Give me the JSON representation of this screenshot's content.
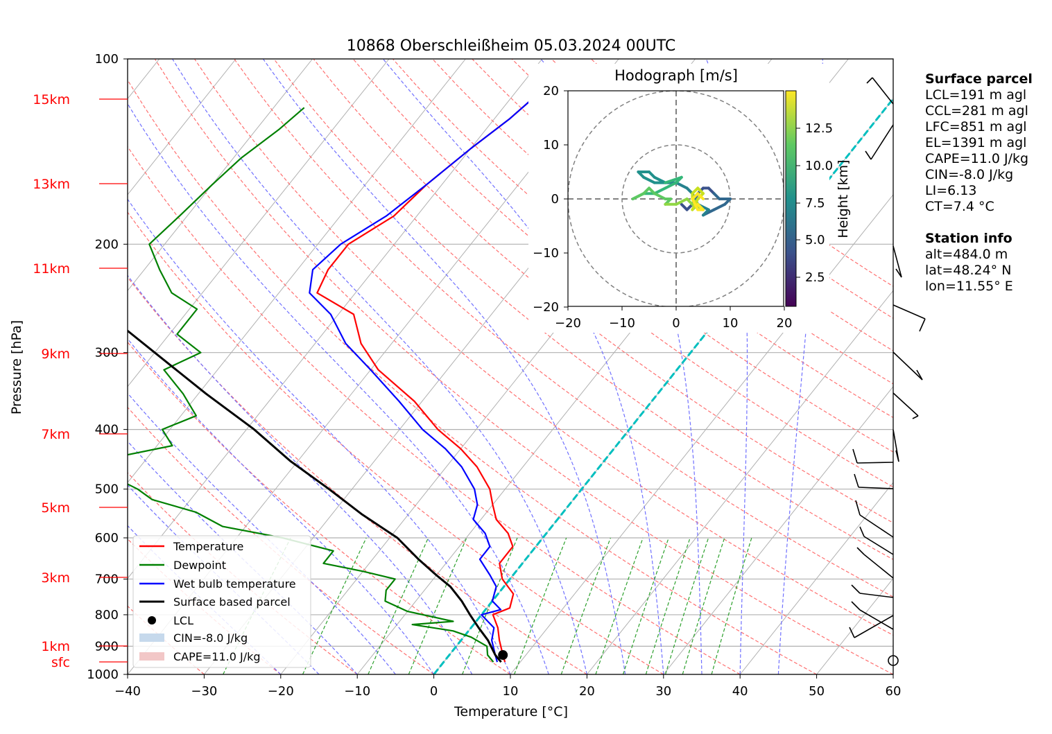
{
  "title": "10868 Oberschleißheim 05.03.2024 00UTC",
  "xlabel": "Temperature [°C]",
  "ylabel": "Pressure [hPa]",
  "x_ticks": [
    "−40",
    "−30",
    "−20",
    "−10",
    "0",
    "10",
    "20",
    "30",
    "40",
    "50",
    "60"
  ],
  "p_ticks": [
    "100",
    "200",
    "300",
    "400",
    "500",
    "600",
    "700",
    "800",
    "900",
    "1000"
  ],
  "height_labels": [
    "15km",
    "13km",
    "11km",
    "9km",
    "7km",
    "5km",
    "3km",
    "1km",
    "sfc"
  ],
  "legend": {
    "temperature": "Temperature",
    "dewpoint": "Dewpoint",
    "wetbulb": "Wet bulb temperature",
    "parcel": "Surface based parcel",
    "lcl": "LCL",
    "cin": "CIN=-8.0 J/kg",
    "cape": "CAPE=11.0 J/kg"
  },
  "hodograph": {
    "title": "Hodograph [m/s]",
    "ticks": [
      "−20",
      "−10",
      "0",
      "10",
      "20"
    ],
    "colorbar_label": "Height [km]",
    "colorbar_ticks": [
      "2.5",
      "5.0",
      "7.5",
      "10.0",
      "12.5"
    ]
  },
  "surface_parcel": {
    "heading": "Surface parcel",
    "lines": [
      "LCL=191 m agl",
      "CCL=281 m agl",
      "LFC=851 m agl",
      "EL=1391 m agl",
      "CAPE=11.0 J/kg",
      "CIN=-8.0 J/kg",
      "LI=6.13",
      "CT=7.4 °C"
    ]
  },
  "station_info": {
    "heading": "Station info",
    "lines": [
      "alt=484.0 m",
      "lat=48.24° N",
      "lon=11.55° E"
    ]
  },
  "colors": {
    "temperature": "#ff0000",
    "dewpoint": "#008000",
    "wetbulb": "#0000ff",
    "parcel": "#000000",
    "zero_isotherm": "#00bfbf",
    "dry_adiabat": "#ff7070",
    "moist_adiabat": "#7070ff",
    "mixing_ratio": "#2ca02c"
  },
  "chart_data": [
    {
      "type": "line",
      "title": "10868 Oberschleißheim 05.03.2024 00UTC",
      "xlabel": "Temperature [°C]",
      "ylabel": "Pressure [hPa]",
      "xlim": [
        -40,
        60
      ],
      "ylim": [
        1000,
        100
      ],
      "y_scale": "log",
      "skew": "skew-T log-p",
      "grid": true,
      "legend_position": "lower-left",
      "series": [
        {
          "name": "Temperature",
          "points": [
            [
              8,
              955
            ],
            [
              7,
              930
            ],
            [
              5,
              880
            ],
            [
              3.5,
              840
            ],
            [
              1.5,
              800
            ],
            [
              3,
              780
            ],
            [
              2,
              740
            ],
            [
              -1,
              700
            ],
            [
              -3,
              660
            ],
            [
              -3,
              620
            ],
            [
              -5,
              590
            ],
            [
              -8,
              560
            ],
            [
              -10,
              530
            ],
            [
              -12,
              500
            ],
            [
              -16,
              460
            ],
            [
              -20,
              430
            ],
            [
              -25,
              400
            ],
            [
              -31,
              360
            ],
            [
              -39,
              320
            ],
            [
              -44,
              290
            ],
            [
              -48,
              260
            ],
            [
              -55,
              240
            ],
            [
              -56,
              220
            ],
            [
              -56,
              200
            ],
            [
              -53,
              180
            ],
            [
              -52,
              160
            ],
            [
              -50,
              140
            ],
            [
              -48,
              125
            ],
            [
              -47,
              115
            ]
          ]
        },
        {
          "name": "Dewpoint",
          "points": [
            [
              6.5,
              955
            ],
            [
              5,
              930
            ],
            [
              4,
              900
            ],
            [
              1,
              870
            ],
            [
              -2,
              850
            ],
            [
              -8,
              830
            ],
            [
              -3,
              820
            ],
            [
              -10,
              790
            ],
            [
              -14,
              760
            ],
            [
              -15,
              730
            ],
            [
              -15,
              700
            ],
            [
              -20,
              680
            ],
            [
              -26,
              660
            ],
            [
              -26,
              630
            ],
            [
              -34,
              600
            ],
            [
              -43,
              575
            ],
            [
              -48,
              545
            ],
            [
              -55,
              520
            ],
            [
              -58,
              500
            ],
            [
              -62,
              480
            ],
            [
              -64,
              460
            ],
            [
              -63,
              440
            ],
            [
              -58,
              425
            ],
            [
              -61,
              400
            ],
            [
              -58,
              380
            ],
            [
              -62,
              350
            ],
            [
              -67,
              320
            ],
            [
              -64,
              300
            ],
            [
              -69,
              280
            ],
            [
              -69,
              255
            ],
            [
              -74,
              240
            ],
            [
              -78,
              220
            ],
            [
              -82,
              200
            ],
            [
              -81,
              180
            ],
            [
              -80,
              160
            ],
            [
              -79,
              145
            ],
            [
              -77,
              130
            ],
            [
              -76,
              120
            ]
          ]
        },
        {
          "name": "Wet bulb temperature",
          "points": [
            [
              7,
              955
            ],
            [
              6,
              930
            ],
            [
              4,
              880
            ],
            [
              3,
              840
            ],
            [
              0,
              800
            ],
            [
              2,
              785
            ],
            [
              0,
              760
            ],
            [
              -1,
              720
            ],
            [
              -3,
              690
            ],
            [
              -6,
              650
            ],
            [
              -6,
              620
            ],
            [
              -8,
              590
            ],
            [
              -11,
              560
            ],
            [
              -12,
              530
            ],
            [
              -14,
              500
            ],
            [
              -18,
              460
            ],
            [
              -22,
              430
            ],
            [
              -27,
              400
            ],
            [
              -33,
              360
            ],
            [
              -40,
              320
            ],
            [
              -46,
              290
            ],
            [
              -51,
              260
            ],
            [
              -56,
              240
            ],
            [
              -58,
              220
            ],
            [
              -57,
              200
            ],
            [
              -54,
              180
            ],
            [
              -52,
              160
            ],
            [
              -50,
              140
            ],
            [
              -48,
              125
            ],
            [
              -47,
              115
            ]
          ]
        },
        {
          "name": "Surface based parcel",
          "points": [
            [
              7.5,
              955
            ],
            [
              6,
              930
            ],
            [
              3.5,
              880
            ],
            [
              1,
              840
            ],
            [
              -1.5,
              800
            ],
            [
              -4,
              760
            ],
            [
              -7,
              720
            ],
            [
              -10,
              690
            ],
            [
              -14,
              650
            ],
            [
              -19,
              600
            ],
            [
              -26,
              550
            ],
            [
              -33,
              500
            ],
            [
              -41,
              450
            ],
            [
              -49,
              400
            ],
            [
              -59,
              350
            ],
            [
              -70,
              300
            ],
            [
              -83,
              250
            ],
            [
              -95,
              200
            ],
            [
              -105,
              170
            ],
            [
              -110,
              160
            ]
          ]
        }
      ],
      "lcl": {
        "temperature": 7,
        "pressure": 930
      },
      "cin_jkg": -8.0,
      "cape_jkg": 11.0
    },
    {
      "type": "line",
      "title": "Hodograph [m/s]",
      "xlim": [
        -20,
        20
      ],
      "ylim": [
        -20,
        20
      ],
      "colorbar_label": "Height [km]",
      "series": [
        {
          "name": "",
          "points": [
            [
              1,
              -1
            ],
            [
              2,
              -2
            ],
            [
              3,
              -1
            ],
            [
              4,
              1
            ],
            [
              5,
              2
            ],
            [
              6,
              2
            ],
            [
              7,
              1
            ],
            [
              8,
              0
            ],
            [
              9,
              0
            ],
            [
              10,
              0
            ],
            [
              9,
              -1
            ],
            [
              7,
              -2
            ],
            [
              5,
              -3
            ],
            [
              6,
              -2
            ],
            [
              4,
              -1
            ],
            [
              3,
              1
            ],
            [
              2,
              2
            ],
            [
              0,
              3
            ],
            [
              -2,
              3
            ],
            [
              -4,
              4
            ],
            [
              -5,
              5
            ],
            [
              -7,
              5
            ],
            [
              -6,
              4
            ],
            [
              -4,
              3
            ],
            [
              -2,
              3
            ],
            [
              1,
              4
            ],
            [
              0,
              3
            ],
            [
              -2,
              2
            ],
            [
              -4,
              1
            ],
            [
              -6,
              1
            ],
            [
              -8,
              0
            ],
            [
              -6,
              1
            ],
            [
              -5,
              2
            ],
            [
              -4,
              1
            ],
            [
              -2,
              0
            ],
            [
              -1,
              0
            ],
            [
              -2,
              -1
            ],
            [
              0,
              -1
            ],
            [
              2,
              0
            ],
            [
              3,
              -1
            ],
            [
              5,
              -2
            ],
            [
              4,
              -1
            ],
            [
              3,
              -2
            ],
            [
              4,
              0
            ],
            [
              5,
              1
            ],
            [
              4,
              2
            ],
            [
              3,
              1
            ],
            [
              3,
              0
            ],
            [
              4,
              -1
            ],
            [
              5,
              -2
            ],
            [
              4,
              -2
            ],
            [
              3,
              0
            ],
            [
              4,
              1
            ],
            [
              5,
              0
            ]
          ]
        }
      ]
    }
  ]
}
